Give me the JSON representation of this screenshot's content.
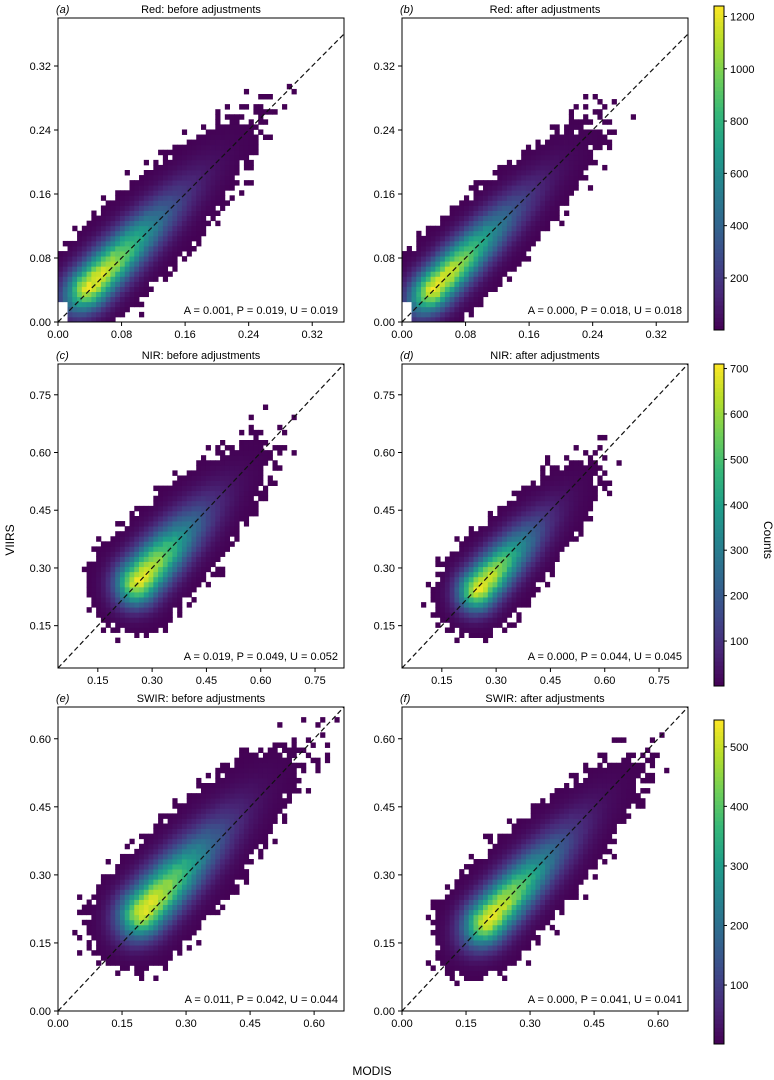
{
  "figure": {
    "ylabel_shared": "VIIRS",
    "xlabel_shared": "MODIS",
    "colorbar_label": "Counts"
  },
  "colorbars": [
    {
      "ticks": [
        200,
        400,
        600,
        800,
        1000,
        1200
      ],
      "min": 1,
      "max": 1240
    },
    {
      "ticks": [
        100,
        200,
        300,
        400,
        500,
        600,
        700
      ],
      "min": 1,
      "max": 710
    },
    {
      "ticks": [
        100,
        200,
        300,
        400,
        500
      ],
      "min": 1,
      "max": 545
    }
  ],
  "chart_data": [
    {
      "type": "heatmap",
      "panel_letter": "(a)",
      "title": "Red: before adjustments",
      "stats_text": "A = 0.001, P = 0.019, U = 0.019",
      "xlim": [
        0.0,
        0.36
      ],
      "ylim": [
        0.0,
        0.38
      ],
      "xticks": [
        0.0,
        0.08,
        0.16,
        0.24,
        0.32
      ],
      "yticks": [
        0.0,
        0.08,
        0.16,
        0.24,
        0.32
      ],
      "ytick_labels": [
        "0.00",
        "0.08",
        "0.16",
        "0.24",
        "0.32"
      ],
      "xtick_labels": [
        "0.00",
        "0.08",
        "0.16",
        "0.24",
        "0.32"
      ],
      "peak": [
        0.04,
        0.045
      ],
      "slope": 1.0,
      "spread_major": 0.07,
      "spread_minor": 0.022,
      "vmax": 1240,
      "colorbar": 0
    },
    {
      "type": "heatmap",
      "panel_letter": "(b)",
      "title": "Red: after adjustments",
      "stats_text": "A = 0.000, P = 0.018, U = 0.018",
      "xlim": [
        0.0,
        0.36
      ],
      "ylim": [
        0.0,
        0.38
      ],
      "xticks": [
        0.0,
        0.08,
        0.16,
        0.24,
        0.32
      ],
      "yticks": [
        0.0,
        0.08,
        0.16,
        0.24,
        0.32
      ],
      "ytick_labels": [
        "0.00",
        "0.08",
        "0.16",
        "0.24",
        "0.32"
      ],
      "xtick_labels": [
        "0.00",
        "0.08",
        "0.16",
        "0.24",
        "0.32"
      ],
      "peak": [
        0.04,
        0.042
      ],
      "slope": 1.0,
      "spread_major": 0.07,
      "spread_minor": 0.021,
      "vmax": 1240,
      "colorbar": 0
    },
    {
      "type": "heatmap",
      "panel_letter": "(c)",
      "title": "NIR: before adjustments",
      "stats_text": "A = 0.019, P = 0.049, U = 0.052",
      "xlim": [
        0.04,
        0.83
      ],
      "ylim": [
        0.04,
        0.83
      ],
      "xticks": [
        0.15,
        0.3,
        0.45,
        0.6,
        0.75
      ],
      "yticks": [
        0.15,
        0.3,
        0.45,
        0.6,
        0.75
      ],
      "ytick_labels": [
        "0.15",
        "0.30",
        "0.45",
        "0.60",
        "0.75"
      ],
      "xtick_labels": [
        "0.15",
        "0.30",
        "0.45",
        "0.60",
        "0.75"
      ],
      "peak": [
        0.26,
        0.265
      ],
      "slope": 1.0,
      "spread_major": 0.12,
      "spread_minor": 0.05,
      "vmax": 710,
      "colorbar": 1
    },
    {
      "type": "heatmap",
      "panel_letter": "(d)",
      "title": "NIR: after adjustments",
      "stats_text": "A = 0.000, P = 0.044, U = 0.045",
      "xlim": [
        0.04,
        0.83
      ],
      "ylim": [
        0.04,
        0.83
      ],
      "xticks": [
        0.15,
        0.3,
        0.45,
        0.6,
        0.75
      ],
      "yticks": [
        0.15,
        0.3,
        0.45,
        0.6,
        0.75
      ],
      "ytick_labels": [
        "0.15",
        "0.30",
        "0.45",
        "0.60",
        "0.75"
      ],
      "xtick_labels": [
        "0.15",
        "0.30",
        "0.45",
        "0.60",
        "0.75"
      ],
      "peak": [
        0.25,
        0.245
      ],
      "slope": 1.0,
      "spread_major": 0.11,
      "spread_minor": 0.045,
      "vmax": 710,
      "colorbar": 1
    },
    {
      "type": "heatmap",
      "panel_letter": "(e)",
      "title": "SWIR: before adjustments",
      "stats_text": "A = 0.011, P = 0.042, U = 0.044",
      "xlim": [
        0.0,
        0.67
      ],
      "ylim": [
        0.0,
        0.67
      ],
      "xticks": [
        0.0,
        0.15,
        0.3,
        0.45,
        0.6
      ],
      "yticks": [
        0.0,
        0.15,
        0.3,
        0.45,
        0.6
      ],
      "ytick_labels": [
        "0.00",
        "0.15",
        "0.30",
        "0.45",
        "0.60"
      ],
      "xtick_labels": [
        "0.00",
        "0.15",
        "0.30",
        "0.45",
        "0.60"
      ],
      "peak": [
        0.2,
        0.22
      ],
      "slope": 1.0,
      "spread_major": 0.12,
      "spread_minor": 0.045,
      "vmax": 545,
      "colorbar": 2
    },
    {
      "type": "heatmap",
      "panel_letter": "(f)",
      "title": "SWIR: after adjustments",
      "stats_text": "A = 0.000, P = 0.041, U = 0.041",
      "xlim": [
        0.0,
        0.67
      ],
      "ylim": [
        0.0,
        0.67
      ],
      "xticks": [
        0.0,
        0.15,
        0.3,
        0.45,
        0.6
      ],
      "yticks": [
        0.0,
        0.15,
        0.3,
        0.45,
        0.6
      ],
      "ytick_labels": [
        "0.00",
        "0.15",
        "0.30",
        "0.45",
        "0.60"
      ],
      "xtick_labels": [
        "0.00",
        "0.15",
        "0.30",
        "0.45",
        "0.60"
      ],
      "peak": [
        0.2,
        0.2
      ],
      "slope": 1.0,
      "spread_major": 0.12,
      "spread_minor": 0.042,
      "vmax": 545,
      "colorbar": 2
    }
  ]
}
